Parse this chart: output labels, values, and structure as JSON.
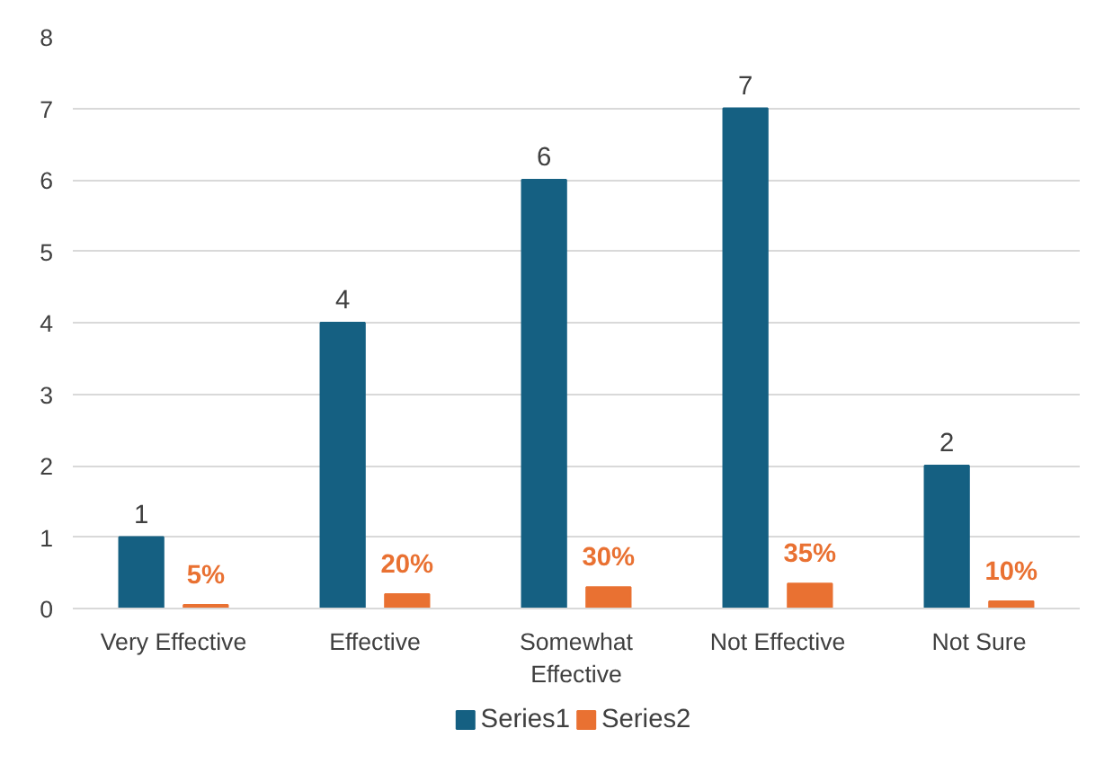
{
  "chart_data": {
    "type": "bar",
    "categories": [
      "Very Effective",
      "Effective",
      "Somewhat Effective",
      "Not Effective",
      "Not Sure"
    ],
    "series": [
      {
        "name": "Series1",
        "color": "#156082",
        "values": [
          1,
          4,
          6,
          7,
          2
        ],
        "value_labels": [
          "1",
          "4",
          "6",
          "7",
          "2"
        ]
      },
      {
        "name": "Series2",
        "color": "#e97132",
        "values": [
          0.05,
          0.2,
          0.3,
          0.35,
          0.1
        ],
        "value_labels": [
          "5%",
          "20%",
          "30%",
          "35%",
          "10%"
        ]
      }
    ],
    "ylim": [
      0,
      8
    ],
    "yticks": [
      0,
      1,
      2,
      3,
      4,
      5,
      6,
      7,
      8
    ],
    "grid": "y",
    "legend": "bottom"
  }
}
